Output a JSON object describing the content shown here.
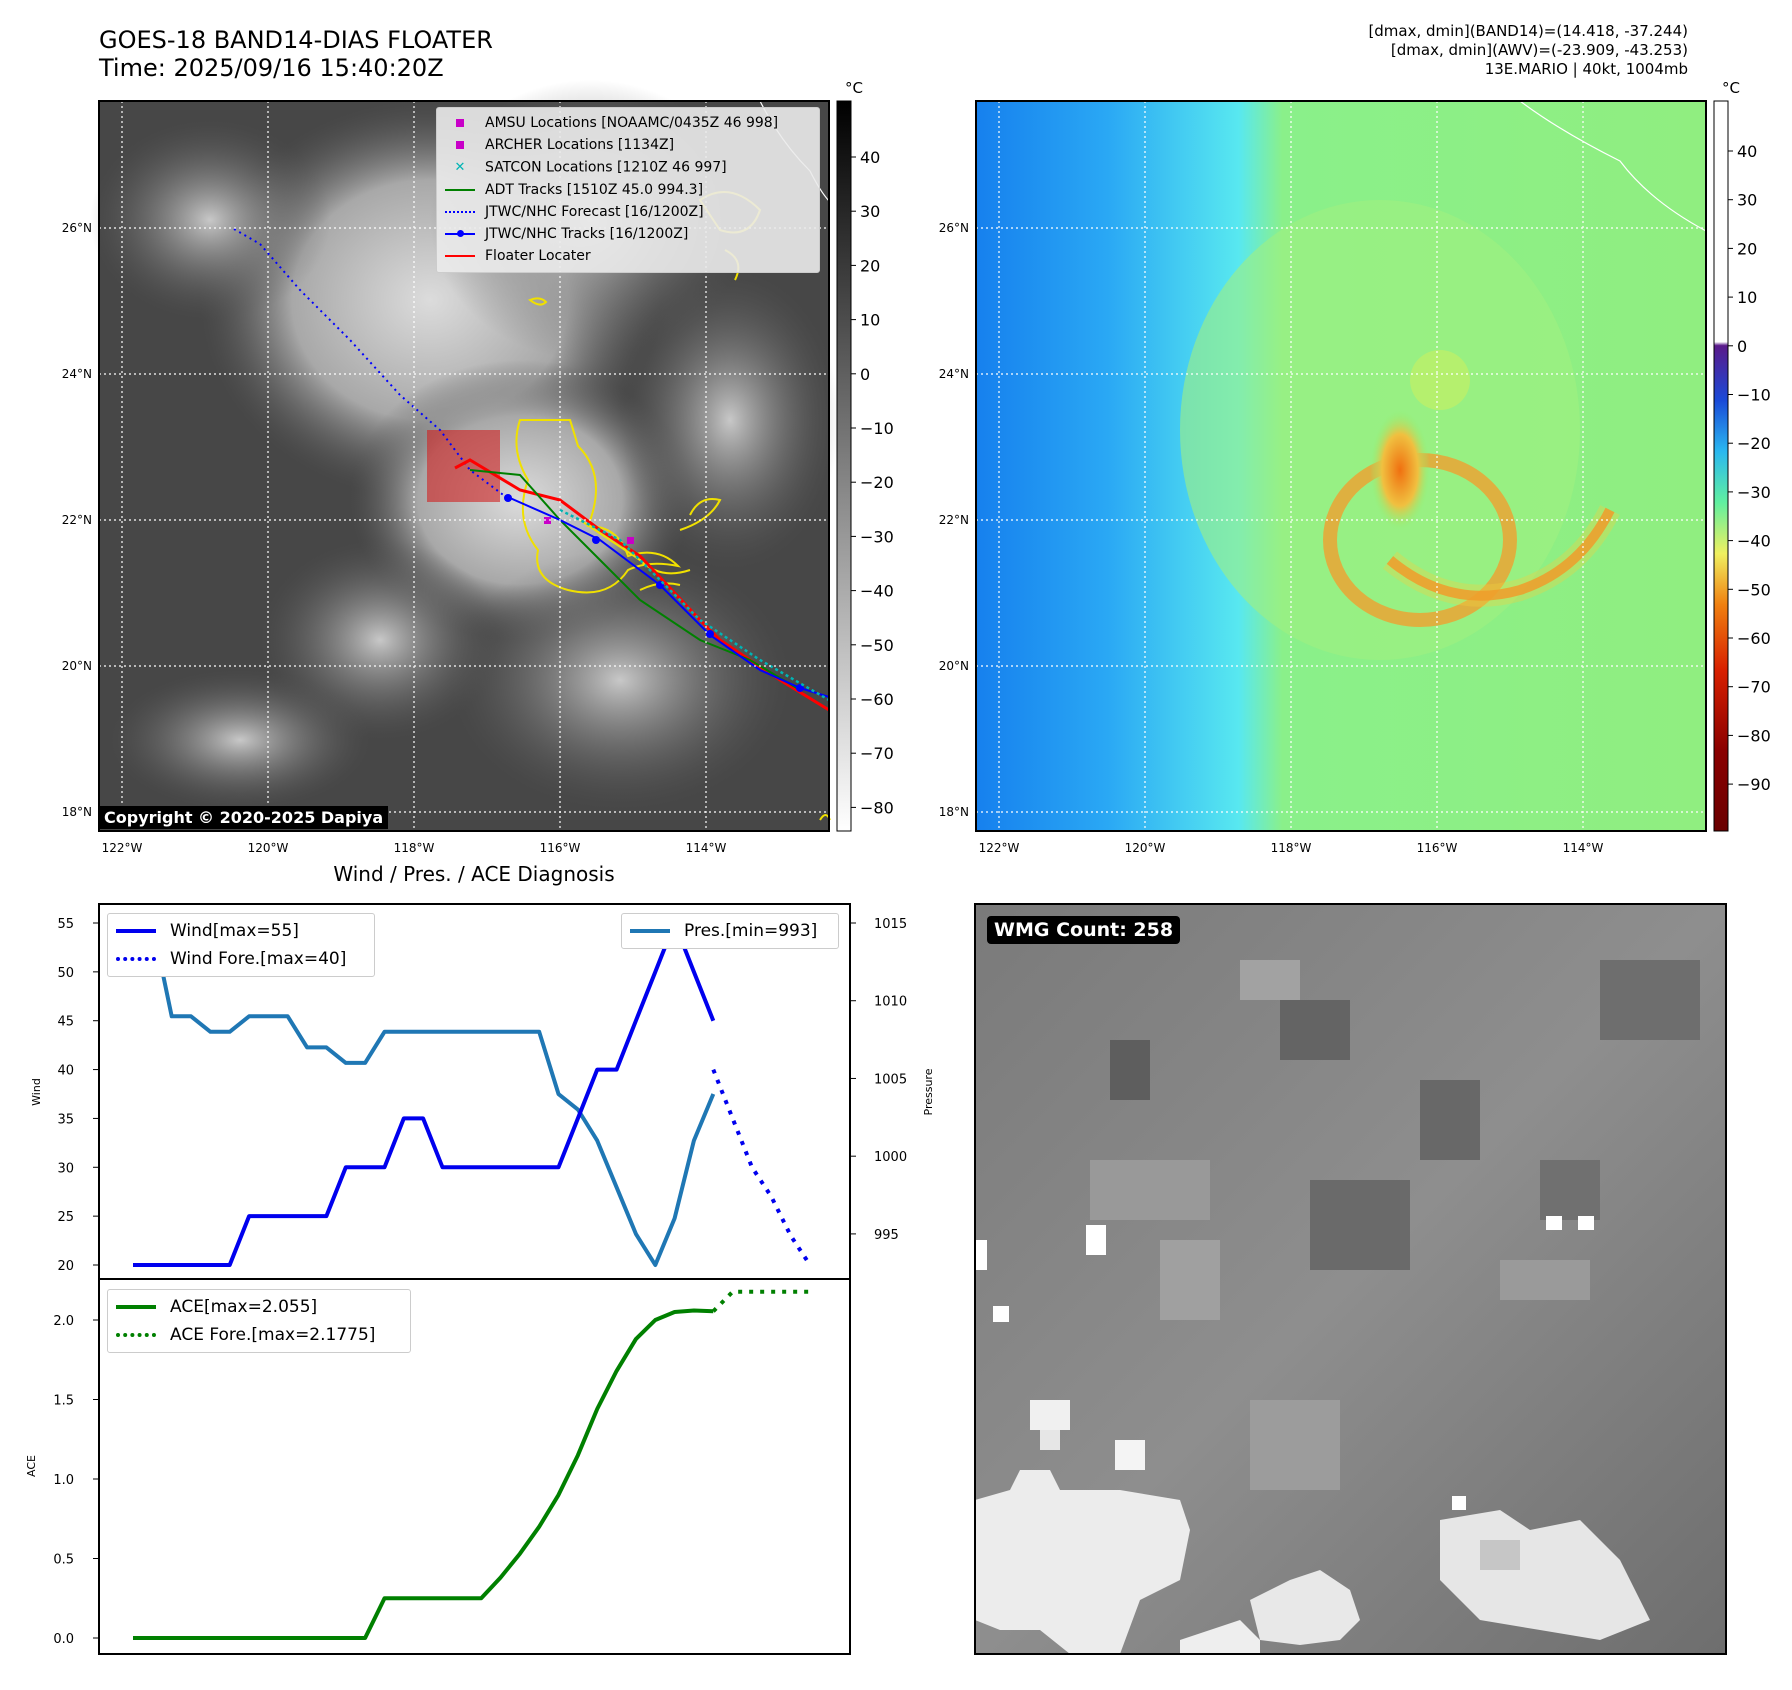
{
  "header": {
    "title_line1": "GOES-18 BAND14-DIAS FLOATER",
    "title_line2": "Time: 2025/09/16 15:40:20Z",
    "stats_line1": "[dmax, dmin](BAND14)=(14.418, -37.244)",
    "stats_line2": "[dmax, dmin](AWV)=(-23.909, -43.253)",
    "stats_line3": "13E.MARIO | 40kt, 1004mb"
  },
  "map_axes": {
    "lat_labels": [
      "26°N",
      "24°N",
      "22°N",
      "20°N",
      "18°N"
    ],
    "lon_labels": [
      "122°W",
      "120°W",
      "118°W",
      "116°W",
      "114°W"
    ]
  },
  "colorbar_left": {
    "unit": "°C",
    "ticks": [
      "40",
      "30",
      "20",
      "10",
      "0",
      "−10",
      "−20",
      "−30",
      "−40",
      "−50",
      "−60",
      "−70",
      "−80"
    ]
  },
  "colorbar_right": {
    "unit": "°C",
    "ticks": [
      "40",
      "30",
      "20",
      "10",
      "0",
      "−10",
      "−20",
      "−30",
      "−40",
      "−50",
      "−60",
      "−70",
      "−80",
      "−90"
    ]
  },
  "map_legend": {
    "items": [
      {
        "label": "AMSU Locations [NOAAMC/0435Z 46 998]",
        "color": "#c800c8",
        "kind": "square"
      },
      {
        "label": "ARCHER Locations [1134Z]",
        "color": "#c800c8",
        "kind": "square"
      },
      {
        "label": "SATCON Locations [1210Z 46 997]",
        "color": "#00b4b4",
        "kind": "x"
      },
      {
        "label": "ADT Tracks [1510Z 45.0 994.3]",
        "color": "#008000",
        "kind": "line"
      },
      {
        "label": "JTWC/NHC Forecast [16/1200Z]",
        "color": "#0000ff",
        "kind": "dotted"
      },
      {
        "label": "JTWC/NHC Tracks [16/1200Z]",
        "color": "#0000ff",
        "kind": "line-marker"
      },
      {
        "label": "Floater Locater",
        "color": "#ff0000",
        "kind": "line"
      }
    ]
  },
  "copyright": "Copyright © 2020-2025 Dapiya",
  "diagnosis": {
    "title": "Wind / Pres. / ACE Diagnosis",
    "wind_ylabel": "Wind",
    "pres_ylabel": "Pressure",
    "ace_ylabel": "ACE",
    "wind_ticks": [
      "55",
      "50",
      "45",
      "40",
      "35",
      "30",
      "25",
      "20"
    ],
    "pres_ticks": [
      "1015",
      "1010",
      "1005",
      "1000",
      "995"
    ],
    "ace_ticks": [
      "2.0",
      "1.5",
      "1.0",
      "0.5",
      "0.0"
    ],
    "legend_wind": "Wind[max=55]",
    "legend_wind_fore": "Wind Fore.[max=40]",
    "legend_pres": "Pres.[min=993]",
    "legend_ace": "ACE[max=2.055]",
    "legend_ace_fore": "ACE Fore.[max=2.1775]"
  },
  "wmg": {
    "label": "WMG Count: 258"
  },
  "chart_data": [
    {
      "type": "line",
      "series": [
        {
          "name": "Wind[max=55]",
          "x": [
            0,
            1,
            2,
            3,
            4,
            5,
            6,
            7,
            8,
            9,
            10,
            11,
            12,
            13,
            14,
            15,
            16,
            17,
            18,
            19,
            20,
            21,
            22,
            23,
            24,
            25,
            26,
            27,
            28,
            29,
            30
          ],
          "values": [
            20,
            20,
            20,
            20,
            20,
            20,
            25,
            25,
            25,
            25,
            25,
            30,
            30,
            30,
            35,
            35,
            30,
            30,
            30,
            30,
            30,
            30,
            30,
            35,
            40,
            40,
            45,
            50,
            55,
            50,
            45
          ],
          "color": "#0000ee"
        },
        {
          "name": "Wind Fore.[max=40]",
          "x": [
            30,
            31,
            32,
            33,
            34,
            35
          ],
          "values": [
            40,
            35,
            30,
            27,
            23,
            20
          ],
          "color": "#0000ee",
          "style": "dotted"
        },
        {
          "name": "Pres.[min=993]",
          "x": [
            0,
            1,
            2,
            3,
            4,
            5,
            6,
            7,
            8,
            9,
            10,
            11,
            12,
            13,
            14,
            15,
            16,
            17,
            18,
            19,
            20,
            21,
            22,
            23,
            24,
            25,
            26,
            27,
            28,
            29,
            30
          ],
          "values": [
            1015,
            1015,
            1009,
            1009,
            1008,
            1008,
            1009,
            1009,
            1009,
            1007,
            1007,
            1006,
            1006,
            1008,
            1008,
            1008,
            1008,
            1008,
            1008,
            1008,
            1008,
            1008,
            1004,
            1003,
            1001,
            998,
            995,
            993,
            996,
            1001,
            1004
          ],
          "color": "#1f77b4",
          "axis": "right"
        }
      ],
      "ylim_left": [
        20,
        55
      ],
      "ylim_right": [
        993,
        1015
      ]
    },
    {
      "type": "line",
      "series": [
        {
          "name": "ACE[max=2.055]",
          "x": [
            0,
            1,
            2,
            3,
            4,
            5,
            6,
            7,
            8,
            9,
            10,
            11,
            12,
            13,
            14,
            15,
            16,
            17,
            18,
            19,
            20,
            21,
            22,
            23,
            24,
            25,
            26,
            27,
            28,
            29,
            30
          ],
          "values": [
            0,
            0,
            0,
            0,
            0,
            0,
            0,
            0,
            0,
            0,
            0,
            0,
            0,
            0.25,
            0.25,
            0.25,
            0.25,
            0.25,
            0.25,
            0.38,
            0.53,
            0.7,
            0.9,
            1.15,
            1.44,
            1.68,
            1.88,
            2.0,
            2.05,
            2.06,
            2.055
          ],
          "color": "#008000"
        },
        {
          "name": "ACE Fore.[max=2.1775]",
          "x": [
            30,
            31,
            32,
            33,
            34,
            35
          ],
          "values": [
            2.055,
            2.1775,
            2.1775,
            2.1775,
            2.1775,
            2.1775
          ],
          "color": "#008000",
          "style": "dotted"
        }
      ],
      "ylim": [
        0,
        2.2
      ]
    }
  ]
}
